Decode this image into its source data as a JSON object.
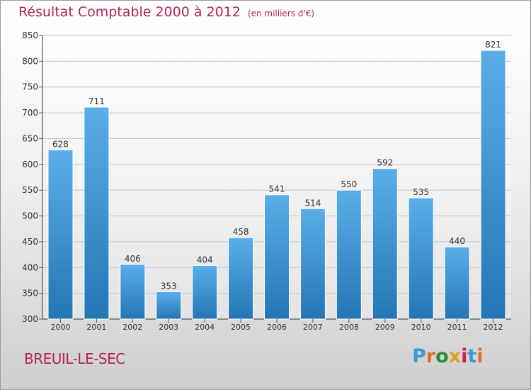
{
  "header": {
    "title": "Résultat Comptable 2000 à 2012",
    "subtitle": "(en milliers d'€)"
  },
  "footer": {
    "place": "BREUIL-LE-SEC",
    "logo": "Proxiti"
  },
  "colors": {
    "title": "#b0245a",
    "bar_top": "#5aaee8",
    "bar_bottom": "#2476b4",
    "logo_letters": [
      "#3a9ad9",
      "#e07020",
      "#2a8a3a",
      "#e0a020",
      "#d02050",
      "#3a9ad9",
      "#e07020"
    ]
  },
  "chart_data": {
    "type": "bar",
    "categories": [
      "2000",
      "2001",
      "2002",
      "2003",
      "2004",
      "2005",
      "2006",
      "2007",
      "2008",
      "2009",
      "2010",
      "2011",
      "2012"
    ],
    "values": [
      628,
      711,
      406,
      353,
      404,
      458,
      541,
      514,
      550,
      592,
      535,
      440,
      821
    ],
    "ylim": [
      300,
      850
    ],
    "yticks": [
      300,
      350,
      400,
      450,
      500,
      550,
      600,
      650,
      700,
      750,
      800,
      850
    ],
    "grid": true,
    "title": "Résultat Comptable 2000 à 2012",
    "xlabel": "",
    "ylabel": ""
  }
}
